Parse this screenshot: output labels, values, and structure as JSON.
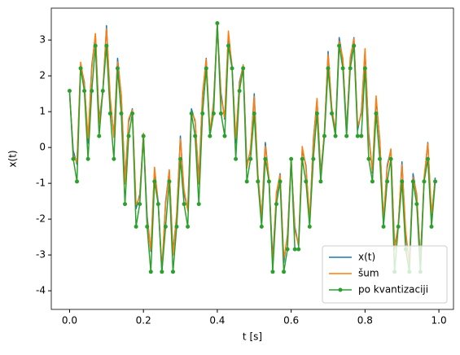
{
  "chart_data": {
    "type": "line",
    "xlabel": "t [s]",
    "ylabel": "x(t)",
    "x": [
      0,
      0.01,
      0.02,
      0.03,
      0.04,
      0.05,
      0.06,
      0.07,
      0.08,
      0.09,
      0.1,
      0.11,
      0.12,
      0.13,
      0.14,
      0.15,
      0.16,
      0.17,
      0.18,
      0.19,
      0.2,
      0.21,
      0.22,
      0.23,
      0.24,
      0.25,
      0.26,
      0.27,
      0.28,
      0.29,
      0.3,
      0.31,
      0.32,
      0.33,
      0.34,
      0.35,
      0.36,
      0.37,
      0.38,
      0.39,
      0.4,
      0.41,
      0.42,
      0.43,
      0.44,
      0.45,
      0.46,
      0.47,
      0.48,
      0.49,
      0.5,
      0.51,
      0.52,
      0.53,
      0.54,
      0.55,
      0.56,
      0.57,
      0.58,
      0.59,
      0.6,
      0.61,
      0.62,
      0.63,
      0.64,
      0.65,
      0.66,
      0.67,
      0.68,
      0.69,
      0.7,
      0.71,
      0.72,
      0.73,
      0.74,
      0.75,
      0.76,
      0.77,
      0.78,
      0.79,
      0.8,
      0.81,
      0.82,
      0.83,
      0.84,
      0.85,
      0.86,
      0.87,
      0.88,
      0.89,
      0.9,
      0.91,
      0.92,
      0.93,
      0.94,
      0.95,
      0.96,
      0.97,
      0.98,
      0.99
    ],
    "series": [
      {
        "name": "x(t)",
        "color": "#1f77b4",
        "values": [
          1.5,
          -0.09,
          -0.47,
          2.28,
          1.83,
          0.12,
          2.27,
          3.15,
          0.79,
          1.52,
          3.4,
          1.29,
          0.33,
          2.49,
          1.42,
          -0.88,
          0.71,
          1.08,
          -1.71,
          -1.31,
          0.32,
          -1.92,
          -2.9,
          -0.65,
          -1.51,
          -3.5,
          -1.51,
          -0.65,
          -2.9,
          -1.92,
          0.32,
          -1.31,
          -1.71,
          1.08,
          0.71,
          -0.88,
          1.42,
          2.49,
          0.33,
          1.29,
          3.4,
          1.52,
          0.79,
          3.15,
          2.27,
          0.12,
          1.83,
          2.28,
          -0.47,
          -0.09,
          1.5,
          -0.84,
          -1.95,
          0.14,
          -0.91,
          -3.12,
          -1.35,
          -0.73,
          -3.21,
          -2.44,
          -0.4,
          -2.21,
          -2.75,
          -0.07,
          -0.5,
          -2.12,
          0.21,
          1.34,
          -0.71,
          0.39,
          2.68,
          1.0,
          0.48,
          3.07,
          2.43,
          0.5,
          2.43,
          3.07,
          0.48,
          1.0,
          2.68,
          0.39,
          -0.71,
          1.34,
          0.21,
          -2.12,
          -0.5,
          -0.07,
          -2.75,
          -2.21,
          -0.4,
          -2.44,
          -3.21,
          -0.73,
          -1.35,
          -3.12,
          -0.91,
          0.14,
          -1.95,
          -0.84
        ]
      },
      {
        "name": "šum",
        "color": "#ff7f0e",
        "values": [
          1.58,
          -0.21,
          -0.42,
          2.38,
          1.77,
          0.26,
          2.18,
          3.18,
          0.68,
          1.59,
          3.32,
          1.41,
          0.28,
          2.39,
          1.48,
          -1.02,
          0.8,
          1.05,
          -1.6,
          -1.38,
          0.4,
          -2.04,
          -2.85,
          -0.55,
          -1.57,
          -3.36,
          -1.6,
          -0.62,
          -3.01,
          -1.85,
          0.24,
          -1.19,
          -1.76,
          0.98,
          0.77,
          -1.02,
          1.51,
          2.46,
          0.44,
          1.22,
          3.48,
          1.4,
          0.84,
          3.25,
          2.21,
          0.26,
          1.74,
          2.31,
          -0.58,
          -0.02,
          1.42,
          -0.72,
          -2.0,
          0.04,
          -0.85,
          -3.26,
          -1.26,
          -0.76,
          -3.1,
          -2.51,
          -0.32,
          -2.33,
          -2.7,
          0.03,
          -0.56,
          -1.98,
          0.12,
          1.37,
          -0.82,
          0.46,
          2.6,
          1.12,
          0.43,
          2.97,
          2.49,
          0.36,
          2.52,
          3.04,
          0.59,
          0.93,
          2.76,
          0.27,
          -0.66,
          1.44,
          0.15,
          -1.98,
          -0.59,
          -0.04,
          -2.86,
          -2.14,
          -0.48,
          -2.32,
          -3.26,
          -0.83,
          -1.29,
          -3.26,
          -0.82,
          0.11,
          -1.84,
          -0.91
        ]
      },
      {
        "name": "po kvantizaciji",
        "color": "#2ca02c",
        "marker": "o",
        "values": [
          1.58,
          -0.32,
          -0.95,
          2.21,
          1.58,
          -0.32,
          1.58,
          2.84,
          0.32,
          1.58,
          2.84,
          0.95,
          -0.32,
          2.21,
          0.95,
          -1.58,
          0.32,
          0.95,
          -2.21,
          -1.58,
          0.32,
          -2.21,
          -3.47,
          -0.95,
          -1.58,
          -3.47,
          -2.21,
          -0.95,
          -3.47,
          -2.21,
          -0.32,
          -1.58,
          -2.21,
          0.95,
          0.32,
          -1.58,
          0.95,
          2.21,
          0.32,
          0.95,
          3.47,
          0.95,
          0.32,
          2.84,
          2.21,
          -0.32,
          1.58,
          2.21,
          -0.95,
          -0.32,
          0.95,
          -0.95,
          -2.21,
          -0.32,
          -0.95,
          -3.47,
          -1.58,
          -0.95,
          -3.47,
          -2.84,
          -0.32,
          -2.84,
          -2.84,
          -0.32,
          -0.95,
          -2.21,
          -0.32,
          0.95,
          -0.95,
          0.32,
          2.21,
          0.95,
          0.32,
          2.84,
          2.21,
          0.32,
          2.21,
          2.84,
          0.32,
          0.32,
          2.21,
          -0.32,
          -0.95,
          0.95,
          -0.32,
          -2.21,
          -0.95,
          -0.32,
          -3.47,
          -2.21,
          -0.95,
          -2.84,
          -3.47,
          -0.95,
          -1.58,
          -3.47,
          -0.95,
          -0.32,
          -2.21,
          -0.95
        ]
      }
    ],
    "xlim": [
      -0.0495,
      1.0395
    ],
    "ylim": [
      -4.52,
      3.89
    ],
    "xticks": [
      {
        "value": 0,
        "label": "0.0"
      },
      0.2,
      0.4,
      0.6,
      0.8,
      {
        "value": 1,
        "label": "1.0"
      }
    ],
    "yticks": [
      -4,
      -3,
      -2,
      -1,
      0,
      1,
      2,
      3
    ],
    "legend": "lower right"
  }
}
